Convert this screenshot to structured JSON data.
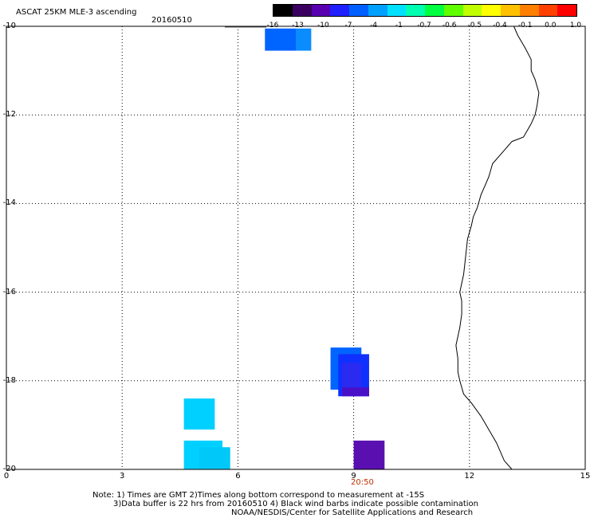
{
  "header": {
    "title": "ASCAT 25KM MLE-3 ascending",
    "date": "20160510"
  },
  "colorbar": {
    "labels": [
      "-16",
      "-13",
      "-10",
      "-7",
      "-4",
      "-1",
      "-0.7",
      "-0.6",
      "-0.5",
      "-0.4",
      "-0.1",
      "0.0",
      "1.0"
    ],
    "colors": [
      "#000000",
      "#3a0060",
      "#5800b0",
      "#2020ff",
      "#0060ff",
      "#00a0ff",
      "#00e0ff",
      "#00ffb0",
      "#00ff40",
      "#60ff00",
      "#c0ff00",
      "#ffff00",
      "#ffc000",
      "#ff8000",
      "#ff4000",
      "#ff0000"
    ]
  },
  "axes": {
    "y_labels": [
      "-10",
      "-12",
      "-14",
      "-16",
      "-18",
      "-20"
    ],
    "x_labels": [
      "0",
      "3",
      "6",
      "9",
      "12",
      "15"
    ],
    "time_label": "20:50",
    "time_color": "#c03000"
  },
  "map_data": {
    "lon_range": [
      0,
      15
    ],
    "lat_range": [
      -20,
      -10
    ],
    "grid": true,
    "cells": [
      {
        "lon0": 6.7,
        "lon1": 7.5,
        "lat0": -10.55,
        "lat1": -10.05,
        "color": "#0064ff"
      },
      {
        "lon0": 7.5,
        "lon1": 7.9,
        "lat0": -10.55,
        "lat1": -10.05,
        "color": "#0a8cff"
      },
      {
        "lon0": 8.4,
        "lon1": 9.2,
        "lat0": -18.2,
        "lat1": -17.25,
        "color": "#0064ff"
      },
      {
        "lon0": 8.6,
        "lon1": 9.4,
        "lat0": -18.35,
        "lat1": -17.4,
        "color": "#1030ff"
      },
      {
        "lon0": 8.7,
        "lon1": 9.2,
        "lat0": -18.25,
        "lat1": -17.6,
        "color": "#2a2af0"
      },
      {
        "lon0": 8.7,
        "lon1": 9.4,
        "lat0": -18.35,
        "lat1": -18.15,
        "color": "#4a10c8"
      },
      {
        "lon0": 4.6,
        "lon1": 5.4,
        "lat0": -19.1,
        "lat1": -18.4,
        "color": "#00d0ff"
      },
      {
        "lon0": 4.6,
        "lon1": 5.6,
        "lat0": -20.0,
        "lat1": -19.35,
        "color": "#00d0ff"
      },
      {
        "lon0": 5.0,
        "lon1": 5.8,
        "lat0": -20.0,
        "lat1": -19.5,
        "color": "#00c8f8"
      },
      {
        "lon0": 9.0,
        "lon1": 9.8,
        "lat0": -20.0,
        "lat1": -19.35,
        "color": "#5a10b0"
      }
    ],
    "coastline": [
      [
        13.15,
        -10.0
      ],
      [
        13.25,
        -10.2
      ],
      [
        13.45,
        -10.5
      ],
      [
        13.6,
        -10.75
      ],
      [
        13.6,
        -11.0
      ],
      [
        13.7,
        -11.2
      ],
      [
        13.8,
        -11.5
      ],
      [
        13.75,
        -11.8
      ],
      [
        13.7,
        -12.0
      ],
      [
        13.6,
        -12.2
      ],
      [
        13.4,
        -12.5
      ],
      [
        13.1,
        -12.6
      ],
      [
        12.9,
        -12.8
      ],
      [
        12.6,
        -13.1
      ],
      [
        12.5,
        -13.4
      ],
      [
        12.4,
        -13.6
      ],
      [
        12.3,
        -13.8
      ],
      [
        12.2,
        -14.1
      ],
      [
        12.1,
        -14.3
      ],
      [
        12.05,
        -14.5
      ],
      [
        11.95,
        -14.8
      ],
      [
        11.9,
        -15.2
      ],
      [
        11.85,
        -15.6
      ],
      [
        11.8,
        -15.8
      ],
      [
        11.75,
        -16.0
      ],
      [
        11.8,
        -16.2
      ],
      [
        11.8,
        -16.5
      ],
      [
        11.75,
        -16.8
      ],
      [
        11.7,
        -17.0
      ],
      [
        11.65,
        -17.2
      ],
      [
        11.7,
        -17.5
      ],
      [
        11.7,
        -17.8
      ],
      [
        11.75,
        -18.0
      ],
      [
        11.85,
        -18.3
      ],
      [
        12.05,
        -18.5
      ],
      [
        12.3,
        -18.8
      ],
      [
        12.5,
        -19.1
      ],
      [
        12.7,
        -19.4
      ],
      [
        12.9,
        -19.8
      ],
      [
        13.1,
        -20.0
      ]
    ]
  },
  "notes": {
    "line1": "Note: 1) Times are GMT 2)Times along bottom correspond to measurement at -15S",
    "line2": "3)Data buffer is 22 hrs from 20160510 4) Black wind barbs indicate possible contamination",
    "line3": "NOAA/NESDIS/Center for Satellite Applications and Research"
  }
}
